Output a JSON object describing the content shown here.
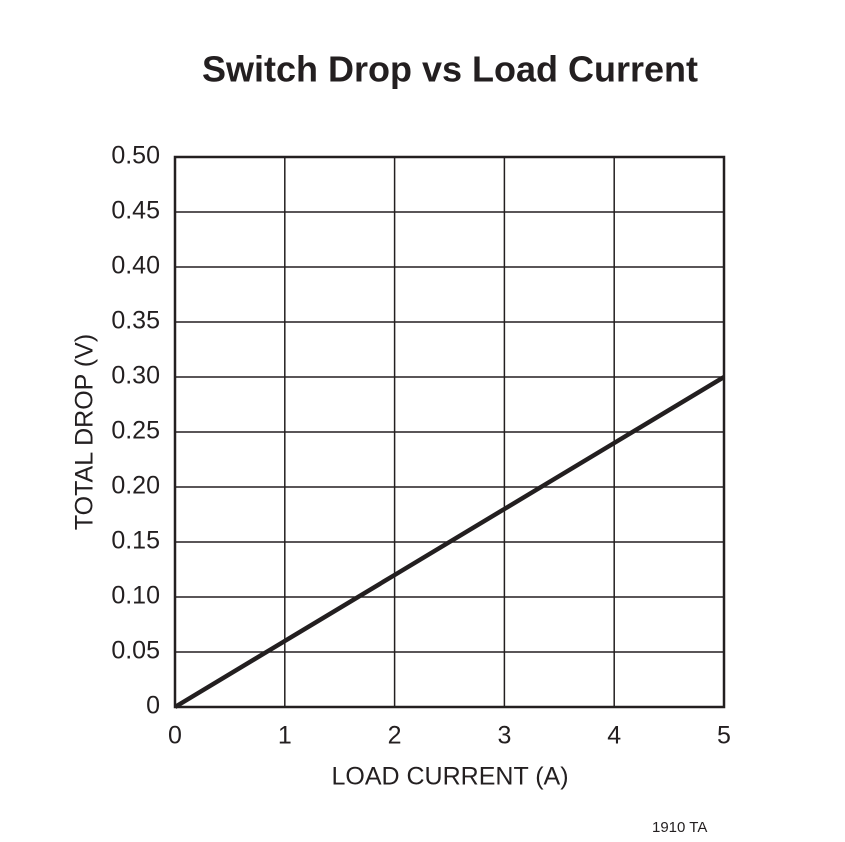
{
  "chart_data": {
    "type": "line",
    "title": "Switch Drop vs Load Current",
    "x_label": "LOAD CURRENT (A)",
    "y_label": "TOTAL DROP (V)",
    "footnote": "1910 TA",
    "x": [
      0,
      1,
      2,
      3,
      4,
      5
    ],
    "series": [
      {
        "name": "Total Drop",
        "color": "#231f20",
        "values": [
          0,
          0.06,
          0.12,
          0.18,
          0.24,
          0.3
        ]
      }
    ],
    "xlim": [
      0,
      5
    ],
    "xticks": [
      0,
      1,
      2,
      3,
      4,
      5
    ],
    "ylim": [
      0,
      0.5
    ],
    "yticks": [
      0,
      0.05,
      {
        "value": 0.1,
        "label": "0.10"
      },
      0.15,
      {
        "value": 0.2,
        "label": "0.20"
      },
      0.25,
      {
        "value": 0.3,
        "label": "0.30"
      },
      0.35,
      {
        "value": 0.4,
        "label": "0.40"
      },
      0.45,
      {
        "value": 0.5,
        "label": "0.50"
      }
    ],
    "grid": true
  }
}
